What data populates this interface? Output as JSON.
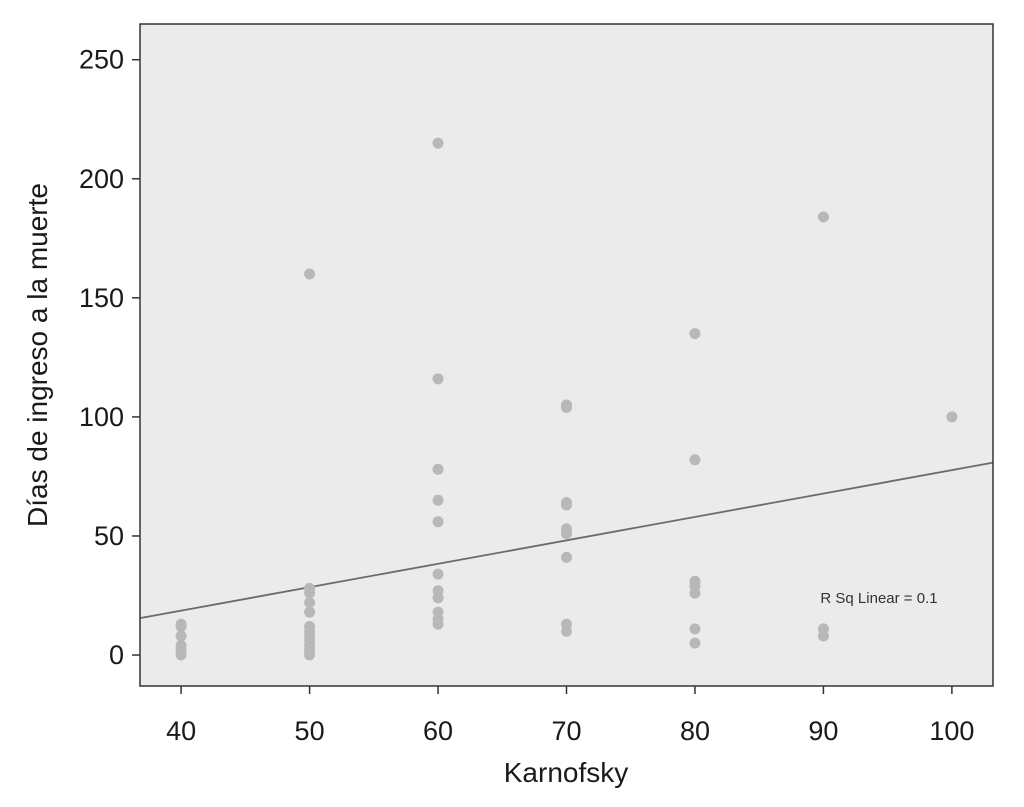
{
  "chart_data": {
    "type": "scatter",
    "xlabel": "Karnofsky",
    "ylabel": "Días de ingreso a la muerte",
    "xlim": [
      36.8,
      103.2
    ],
    "ylim": [
      -13,
      265
    ],
    "x_ticks": [
      40,
      50,
      60,
      70,
      80,
      90,
      100
    ],
    "y_ticks": [
      0,
      50,
      100,
      150,
      200,
      250
    ],
    "grid": false,
    "series": [
      {
        "points": [
          {
            "x": 40,
            "y": 0
          },
          {
            "x": 40,
            "y": 2
          },
          {
            "x": 40,
            "y": 4
          },
          {
            "x": 40,
            "y": 8
          },
          {
            "x": 40,
            "y": 12
          },
          {
            "x": 40,
            "y": 13
          },
          {
            "x": 50,
            "y": 0
          },
          {
            "x": 50,
            "y": 2
          },
          {
            "x": 50,
            "y": 4
          },
          {
            "x": 50,
            "y": 6
          },
          {
            "x": 50,
            "y": 8
          },
          {
            "x": 50,
            "y": 10
          },
          {
            "x": 50,
            "y": 12
          },
          {
            "x": 50,
            "y": 18
          },
          {
            "x": 50,
            "y": 22
          },
          {
            "x": 50,
            "y": 26
          },
          {
            "x": 50,
            "y": 28
          },
          {
            "x": 50,
            "y": 160
          },
          {
            "x": 60,
            "y": 13
          },
          {
            "x": 60,
            "y": 15
          },
          {
            "x": 60,
            "y": 18
          },
          {
            "x": 60,
            "y": 24
          },
          {
            "x": 60,
            "y": 27
          },
          {
            "x": 60,
            "y": 34
          },
          {
            "x": 60,
            "y": 56
          },
          {
            "x": 60,
            "y": 65
          },
          {
            "x": 60,
            "y": 78
          },
          {
            "x": 60,
            "y": 116
          },
          {
            "x": 60,
            "y": 215
          },
          {
            "x": 70,
            "y": 10
          },
          {
            "x": 70,
            "y": 13
          },
          {
            "x": 70,
            "y": 41
          },
          {
            "x": 70,
            "y": 51
          },
          {
            "x": 70,
            "y": 53
          },
          {
            "x": 70,
            "y": 63
          },
          {
            "x": 70,
            "y": 64
          },
          {
            "x": 70,
            "y": 104
          },
          {
            "x": 70,
            "y": 105
          },
          {
            "x": 80,
            "y": 5
          },
          {
            "x": 80,
            "y": 11
          },
          {
            "x": 80,
            "y": 26
          },
          {
            "x": 80,
            "y": 29
          },
          {
            "x": 80,
            "y": 31
          },
          {
            "x": 80,
            "y": 82
          },
          {
            "x": 80,
            "y": 135
          },
          {
            "x": 90,
            "y": 8
          },
          {
            "x": 90,
            "y": 11
          },
          {
            "x": 90,
            "y": 184
          },
          {
            "x": 100,
            "y": 100
          }
        ]
      }
    ],
    "fit_line": {
      "type": "linear",
      "points": [
        {
          "x": 36.8,
          "y": 15.5
        },
        {
          "x": 103.2,
          "y": 80.8
        }
      ]
    },
    "annotations": [
      {
        "text": "R Sq Linear = 0.1",
        "x": 90,
        "y": 24
      }
    ],
    "colors": {
      "plot_background": "#ebebeb",
      "frame": "#333333",
      "marker": "#b8b8b8",
      "fit_line": "#6b6b6b",
      "text": "#1a1a1a"
    }
  }
}
